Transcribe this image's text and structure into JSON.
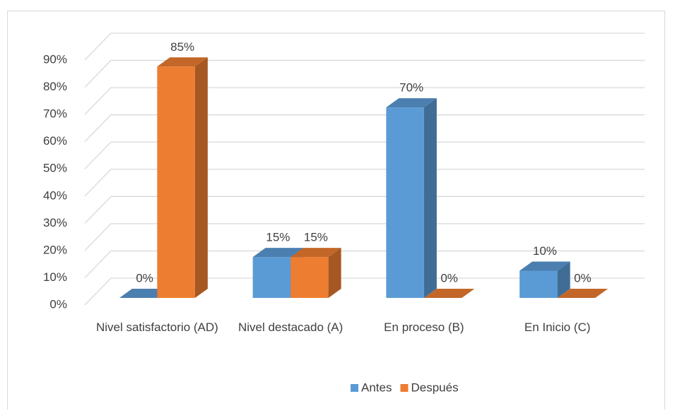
{
  "chart_data": {
    "type": "bar3d",
    "categories": [
      "Nivel satisfactorio (AD)",
      "Nivel destacado (A)",
      "En proceso (B)",
      "En Inicio (C)"
    ],
    "series": [
      {
        "name": "Antes",
        "color": "#5b9bd5",
        "values": [
          0,
          15,
          70,
          10
        ],
        "value_labels": [
          "0%",
          "15%",
          "70%",
          "10%"
        ]
      },
      {
        "name": "Después",
        "color": "#ed7d31",
        "values": [
          85,
          15,
          0,
          0
        ],
        "value_labels": [
          "85%",
          "15%",
          "0%",
          "0%"
        ]
      }
    ],
    "ylim": [
      0,
      90
    ],
    "yticks": [
      {
        "value": 0,
        "label": "0%"
      },
      {
        "value": 10,
        "label": "10%"
      },
      {
        "value": 20,
        "label": "20%"
      },
      {
        "value": 30,
        "label": "30%"
      },
      {
        "value": 40,
        "label": "40%"
      },
      {
        "value": 50,
        "label": "50%"
      },
      {
        "value": 60,
        "label": "60%"
      },
      {
        "value": 70,
        "label": "70%"
      },
      {
        "value": 80,
        "label": "80%"
      },
      {
        "value": 90,
        "label": "90%"
      }
    ],
    "grid": true,
    "legend": "bottom"
  }
}
